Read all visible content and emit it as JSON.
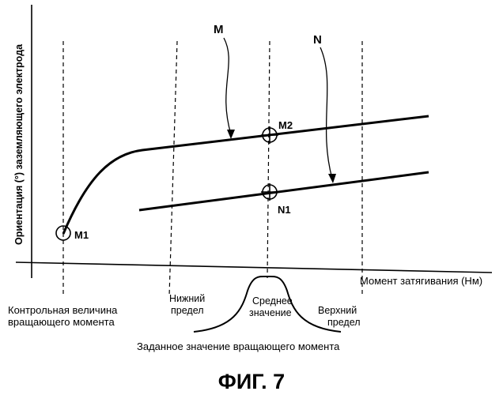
{
  "figure": {
    "y_axis_label": "Ориентация (°) заземляющего электрода",
    "x_axis_label": "Момент затягивания (Нм)",
    "curve_letters": {
      "m": "M",
      "n": "N"
    },
    "point_labels": {
      "m1": "M1",
      "m2": "M2",
      "n1": "N1"
    },
    "reference_label": {
      "line1": "Контрольная величина",
      "line2": "вращающего момента"
    },
    "lower_limit_label": {
      "line1": "Нижний",
      "line2": "предел"
    },
    "mean_label": {
      "line1": "Среднее",
      "line2": "значение"
    },
    "upper_limit_label": {
      "line1": "Верхний",
      "line2": "предел"
    },
    "distribution_label": "Заданное значение вращающего момента",
    "caption": "ФИГ. 7"
  }
}
